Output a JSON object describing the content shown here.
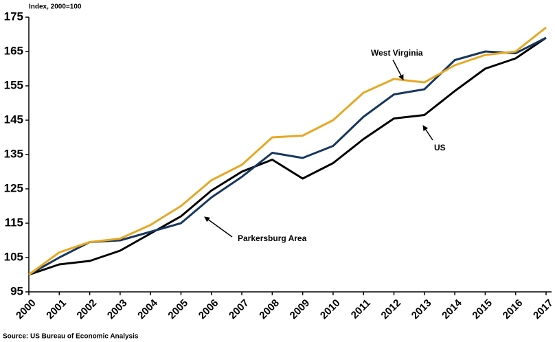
{
  "chart_data": {
    "type": "line",
    "y_label": "Index, 2000=100",
    "source": "Source: US Bureau of Economic Analysis",
    "categories": [
      "2000",
      "2001",
      "2002",
      "2003",
      "2004",
      "2005",
      "2006",
      "2007",
      "2008",
      "2009",
      "2010",
      "2011",
      "2012",
      "2013",
      "2014",
      "2015",
      "2016",
      "2017"
    ],
    "series": [
      {
        "name": "West Virginia",
        "color": "#e6a823",
        "values": [
          100,
          106.5,
          109.5,
          110.5,
          114.5,
          120,
          127.5,
          132,
          140,
          140.5,
          145,
          153,
          157,
          156,
          161,
          164,
          165,
          172
        ]
      },
      {
        "name": "Parkersburg Area",
        "color": "#17375e",
        "values": [
          100,
          105,
          109.5,
          110,
          112.5,
          115,
          122.5,
          128.5,
          135.5,
          134,
          137.5,
          146,
          152.5,
          154,
          162.5,
          165,
          164.5,
          169
        ]
      },
      {
        "name": "US",
        "color": "#000000",
        "values": [
          100,
          103,
          104,
          107,
          112,
          117,
          124.5,
          130,
          133.5,
          128,
          132.5,
          139.5,
          145.5,
          146.5,
          153.5,
          160,
          163,
          169
        ]
      }
    ],
    "ylim": [
      95,
      175
    ],
    "yticks": [
      95,
      105,
      115,
      125,
      135,
      145,
      155,
      165,
      175
    ]
  }
}
